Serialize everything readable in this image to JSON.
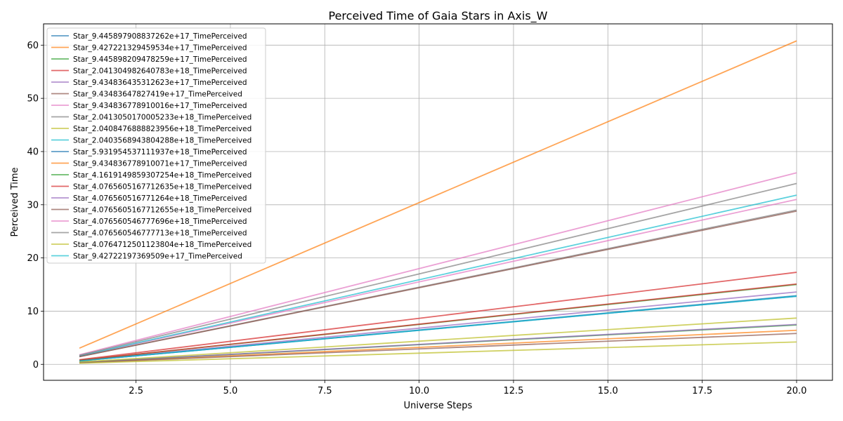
{
  "chart_data": {
    "type": "line",
    "title": "Perceived Time of Gaia Stars in Axis_W",
    "xlabel": "Universe Steps",
    "ylabel": "Perceived Time",
    "xlim": [
      0.05,
      20.95
    ],
    "ylim": [
      -3.0,
      64.0
    ],
    "x_ticks": [
      2.5,
      5.0,
      7.5,
      10.0,
      12.5,
      15.0,
      17.5,
      20.0
    ],
    "y_ticks": [
      0,
      10,
      20,
      30,
      40,
      50,
      60
    ],
    "x_tick_labels": [
      "2.5",
      "5.0",
      "7.5",
      "10.0",
      "12.5",
      "15.0",
      "17.5",
      "20.0"
    ],
    "y_tick_labels": [
      "0",
      "10",
      "20",
      "30",
      "40",
      "50",
      "60"
    ],
    "grid": true,
    "legend_position": "top-left",
    "x": [
      1,
      20
    ],
    "series": [
      {
        "name": "Star_9.445897908837262e+17_TimePerceived",
        "color": "#1f77b4",
        "values": [
          0.64,
          12.8
        ]
      },
      {
        "name": "Star_9.427221329459534e+17_TimePerceived",
        "color": "#ff7f0e",
        "values": [
          0.32,
          6.4
        ]
      },
      {
        "name": "Star_9.445898209478259e+17_TimePerceived",
        "color": "#2ca02c",
        "values": [
          0.37,
          7.4
        ]
      },
      {
        "name": "Star_2.041304982640783e+18_TimePerceived",
        "color": "#d62728",
        "values": [
          0.87,
          17.3
        ]
      },
      {
        "name": "Star_9.434836435312623e+17_TimePerceived",
        "color": "#9467bd",
        "values": [
          0.68,
          13.6
        ]
      },
      {
        "name": "Star_9.43483647827419e+17_TimePerceived",
        "color": "#8c564b",
        "values": [
          0.29,
          5.8
        ]
      },
      {
        "name": "Star_9.434836778910016e+17_TimePerceived",
        "color": "#e377c2",
        "values": [
          1.55,
          31.0
        ]
      },
      {
        "name": "Star_2.0413050170005233e+18_TimePerceived",
        "color": "#7f7f7f",
        "values": [
          1.45,
          29.0
        ]
      },
      {
        "name": "Star_2.0408476888823956e+18_TimePerceived",
        "color": "#bcbd22",
        "values": [
          0.21,
          4.2
        ]
      },
      {
        "name": "Star_2.0403568943804288e+18_TimePerceived",
        "color": "#17becf",
        "values": [
          1.59,
          31.8
        ]
      },
      {
        "name": "Star_5.931954537111937e+18_TimePerceived",
        "color": "#1f77b4",
        "values": [
          0.64,
          12.9
        ]
      },
      {
        "name": "Star_9.434836778910071e+17_TimePerceived",
        "color": "#ff7f0e",
        "values": [
          3.04,
          60.8
        ]
      },
      {
        "name": "Star_4.1619149859307254e+18_TimePerceived",
        "color": "#2ca02c",
        "values": [
          0.75,
          15.0
        ]
      },
      {
        "name": "Star_4.0765605167712635e+18_TimePerceived",
        "color": "#d62728",
        "values": [
          0.76,
          15.1
        ]
      },
      {
        "name": "Star_4.076560516771264e+18_TimePerceived",
        "color": "#9467bd",
        "values": [
          0.38,
          7.5
        ]
      },
      {
        "name": "Star_4.0765605167712655e+18_TimePerceived",
        "color": "#8c564b",
        "values": [
          1.44,
          28.8
        ]
      },
      {
        "name": "Star_4.076560546777696e+18_TimePerceived",
        "color": "#e377c2",
        "values": [
          1.8,
          36.0
        ]
      },
      {
        "name": "Star_4.076560546777713e+18_TimePerceived",
        "color": "#7f7f7f",
        "values": [
          1.7,
          34.0
        ]
      },
      {
        "name": "Star_4.0764712501123804e+18_TimePerceived",
        "color": "#bcbd22",
        "values": [
          0.44,
          8.7
        ]
      },
      {
        "name": "Star_9.42722197369509e+17_TimePerceived",
        "color": "#17becf",
        "values": [
          0.64,
          12.8
        ]
      }
    ]
  }
}
